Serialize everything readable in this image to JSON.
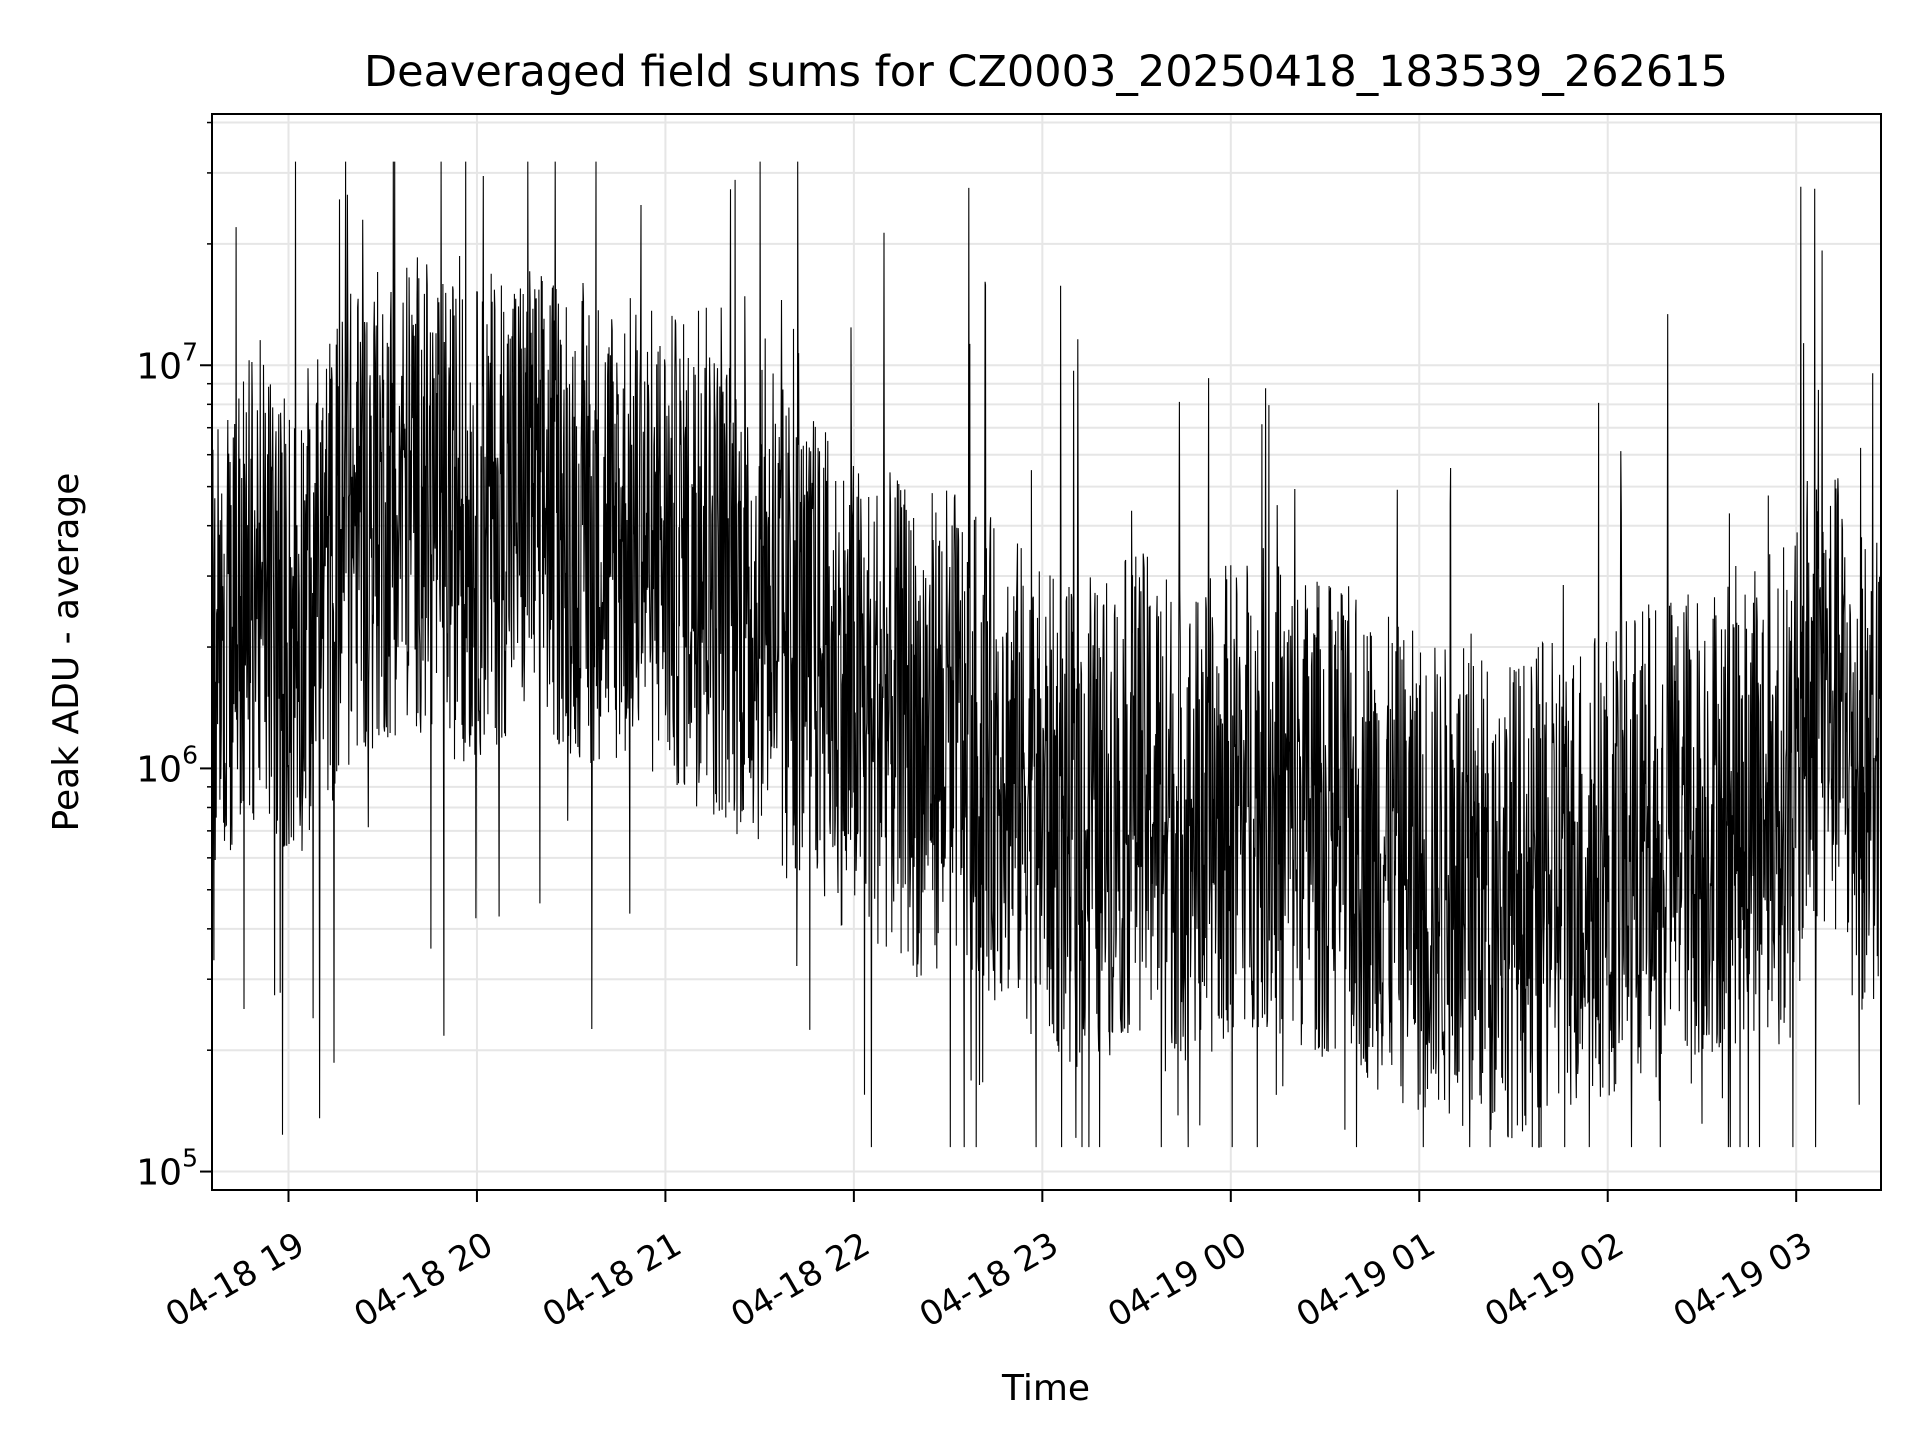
{
  "chart_data": {
    "type": "line",
    "title": "Deaveraged field sums for CZ0003_20250418_183539_262615",
    "xlabel": "Time",
    "ylabel": "Peak ADU - average",
    "y_scale": "log",
    "x_range": [
      "2025-04-18 18:35:39",
      "2025-04-19 03:27:00"
    ],
    "ylim": [
      90000,
      42000000
    ],
    "x_ticks": [
      {
        "t": "2025-04-18 19:00",
        "label": "04-18 19"
      },
      {
        "t": "2025-04-18 20:00",
        "label": "04-18 20"
      },
      {
        "t": "2025-04-18 21:00",
        "label": "04-18 21"
      },
      {
        "t": "2025-04-18 22:00",
        "label": "04-18 22"
      },
      {
        "t": "2025-04-18 23:00",
        "label": "04-18 23"
      },
      {
        "t": "2025-04-19 00:00",
        "label": "04-19 00"
      },
      {
        "t": "2025-04-19 01:00",
        "label": "04-19 01"
      },
      {
        "t": "2025-04-19 02:00",
        "label": "04-19 02"
      },
      {
        "t": "2025-04-19 03:00",
        "label": "04-19 03"
      }
    ],
    "y_ticks": [
      {
        "value": 100000,
        "base": "10",
        "exp": "5"
      },
      {
        "value": 1000000,
        "base": "10",
        "exp": "6"
      },
      {
        "value": 10000000,
        "base": "10",
        "exp": "7"
      }
    ],
    "grid": true,
    "line_color": "#000000",
    "series": [
      {
        "x": [
          "2025-04-18 18:36",
          "2025-04-18 18:45",
          "2025-04-18 18:50",
          "2025-04-18 18:55",
          "2025-04-18 19:00",
          "2025-04-18 19:10",
          "2025-04-18 19:20",
          "2025-04-18 19:30",
          "2025-04-18 19:40",
          "2025-04-18 19:50",
          "2025-04-18 20:00",
          "2025-04-18 20:10",
          "2025-04-18 20:20",
          "2025-04-18 20:30",
          "2025-04-18 20:40",
          "2025-04-18 20:50",
          "2025-04-18 21:00",
          "2025-04-18 21:10",
          "2025-04-18 21:20",
          "2025-04-18 21:30",
          "2025-04-18 21:40",
          "2025-04-18 21:50",
          "2025-04-18 22:00",
          "2025-04-18 22:10",
          "2025-04-18 22:20",
          "2025-04-18 22:30",
          "2025-04-18 22:40",
          "2025-04-18 22:50",
          "2025-04-18 23:00",
          "2025-04-18 23:10",
          "2025-04-18 23:20",
          "2025-04-18 23:30",
          "2025-04-18 23:40",
          "2025-04-18 23:50",
          "2025-04-19 00:00",
          "2025-04-19 00:10",
          "2025-04-19 00:20",
          "2025-04-19 00:30",
          "2025-04-19 00:40",
          "2025-04-19 00:50",
          "2025-04-19 01:00",
          "2025-04-19 01:10",
          "2025-04-19 01:20",
          "2025-04-19 01:30",
          "2025-04-19 01:40",
          "2025-04-19 01:50",
          "2025-04-19 02:00",
          "2025-04-19 02:10",
          "2025-04-19 02:20",
          "2025-04-19 02:30",
          "2025-04-19 02:40",
          "2025-04-19 02:50",
          "2025-04-19 03:00",
          "2025-04-19 03:05",
          "2025-04-19 03:10",
          "2025-04-19 03:15",
          "2025-04-19 03:20",
          "2025-04-19 03:27"
        ],
        "y": [
          2000000,
          2500000,
          3000000,
          2600000,
          2200000,
          2800000,
          4000000,
          4500000,
          5000000,
          4200000,
          4000000,
          4800000,
          4500000,
          4200000,
          4000000,
          3800000,
          3500000,
          3200000,
          2800000,
          2500000,
          2200000,
          1800000,
          1500000,
          1400000,
          1200000,
          1300000,
          1100000,
          1000000,
          800000,
          700000,
          750000,
          900000,
          800000,
          700000,
          850000,
          900000,
          800000,
          750000,
          700000,
          600000,
          550000,
          520000,
          500000,
          480000,
          520000,
          560000,
          600000,
          650000,
          700000,
          750000,
          800000,
          900000,
          950000,
          1600000,
          1500000,
          1300000,
          1000000,
          1000000
        ]
      }
    ]
  }
}
